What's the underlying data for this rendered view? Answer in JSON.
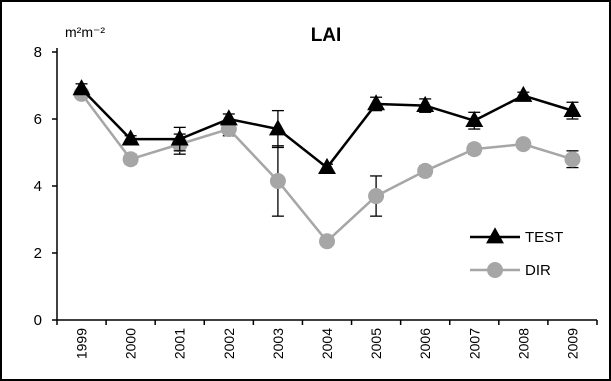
{
  "chart_data": {
    "type": "line",
    "title": "LAI",
    "ylabel": "m²m⁻²",
    "xlabel": "",
    "ylim": [
      0,
      8
    ],
    "yticks": [
      0,
      2,
      4,
      6,
      8
    ],
    "x": [
      "1999",
      "2000",
      "2001",
      "2002",
      "2003",
      "2004",
      "2005",
      "2006",
      "2007",
      "2008",
      "2009"
    ],
    "legend": "right",
    "grid": false,
    "series": [
      {
        "name": "TEST",
        "marker": "triangle",
        "color": "#000000",
        "values": [
          6.9,
          5.4,
          5.4,
          6.0,
          5.7,
          4.55,
          6.45,
          6.4,
          5.95,
          6.7,
          6.25
        ],
        "errors": [
          0.15,
          0.1,
          0.35,
          0.15,
          0.55,
          0.1,
          0.2,
          0.2,
          0.25,
          0.1,
          0.25
        ]
      },
      {
        "name": "DIR",
        "marker": "circle",
        "color": "#a6a6a6",
        "values": [
          6.75,
          4.8,
          5.25,
          5.7,
          4.15,
          2.35,
          3.7,
          4.45,
          5.1,
          5.25,
          4.8
        ],
        "errors": [
          0.1,
          0.15,
          0.3,
          0.2,
          1.05,
          0.1,
          0.6,
          0.15,
          0.15,
          0.1,
          0.25
        ]
      }
    ]
  }
}
